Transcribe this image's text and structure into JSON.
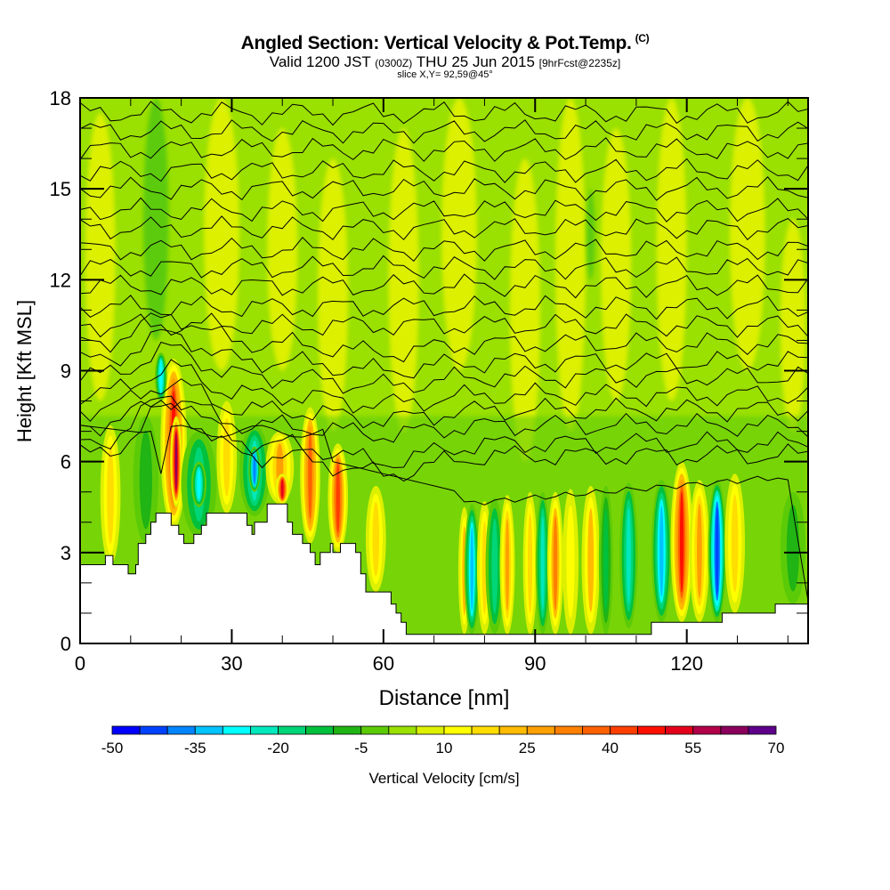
{
  "title": {
    "main": "Angled Section: Vertical Velocity & Pot.Temp.",
    "main_suffix": "(C)",
    "valid_prefix": "Valid 1200 JST",
    "valid_utc": "(0300Z)",
    "valid_date": "THU 25 Jun 2015",
    "forecast": "[9hrFcst@2235z]",
    "slice": "slice X,Y= 92,59@45°"
  },
  "chart_data": {
    "type": "heatmap",
    "title": "Angled Section: Vertical Velocity & Pot.Temp.",
    "xlabel": "Distance [nm]",
    "ylabel": "Height [Kft MSL]",
    "xlim": [
      0,
      144
    ],
    "ylim": [
      0,
      18
    ],
    "x_ticks": [
      0,
      30,
      60,
      90,
      120
    ],
    "x_tick_labels": [
      "0",
      "30",
      "60",
      "90",
      "120"
    ],
    "x_minor_step": 10,
    "y_ticks": [
      0,
      3,
      6,
      9,
      12,
      15,
      18
    ],
    "y_tick_labels": [
      "0",
      "3",
      "6",
      "9",
      "12",
      "15",
      "18"
    ],
    "y_minor_step": 1,
    "background_velocity": 2,
    "terrain_kft": [
      [
        0,
        2.6
      ],
      [
        5,
        2.6
      ],
      [
        5,
        2.9
      ],
      [
        6.5,
        2.9
      ],
      [
        6.5,
        2.6
      ],
      [
        9.5,
        2.6
      ],
      [
        9.5,
        2.3
      ],
      [
        11,
        2.3
      ],
      [
        11,
        2.6
      ],
      [
        11.5,
        2.6
      ],
      [
        11.5,
        3.3
      ],
      [
        13,
        3.3
      ],
      [
        13,
        3.6
      ],
      [
        14,
        3.6
      ],
      [
        14,
        4.0
      ],
      [
        15,
        4.0
      ],
      [
        15,
        4.3
      ],
      [
        18,
        4.3
      ],
      [
        18,
        3.9
      ],
      [
        19.5,
        3.9
      ],
      [
        19.5,
        3.6
      ],
      [
        20.5,
        3.6
      ],
      [
        20.5,
        3.3
      ],
      [
        22.5,
        3.3
      ],
      [
        22.5,
        3.6
      ],
      [
        24,
        3.6
      ],
      [
        24,
        3.9
      ],
      [
        25,
        3.9
      ],
      [
        25,
        4.3
      ],
      [
        33,
        4.3
      ],
      [
        33,
        3.9
      ],
      [
        34,
        3.9
      ],
      [
        34,
        3.6
      ],
      [
        34.5,
        3.6
      ],
      [
        34.5,
        4.0
      ],
      [
        37,
        4.0
      ],
      [
        37,
        4.6
      ],
      [
        41,
        4.6
      ],
      [
        41,
        4.0
      ],
      [
        42,
        4.0
      ],
      [
        42,
        3.6
      ],
      [
        44,
        3.6
      ],
      [
        44,
        3.3
      ],
      [
        45.5,
        3.3
      ],
      [
        45.5,
        3.0
      ],
      [
        46.5,
        3.0
      ],
      [
        46.5,
        2.6
      ],
      [
        47.5,
        2.6
      ],
      [
        47.5,
        3.0
      ],
      [
        49.5,
        3.0
      ],
      [
        49.5,
        3.3
      ],
      [
        50,
        3.3
      ],
      [
        50,
        3.0
      ],
      [
        51.5,
        3.0
      ],
      [
        51.5,
        3.3
      ],
      [
        54.5,
        3.3
      ],
      [
        54.5,
        3.0
      ],
      [
        55.5,
        3.0
      ],
      [
        55.5,
        2.3
      ],
      [
        56.5,
        2.3
      ],
      [
        56.5,
        1.7
      ],
      [
        61.5,
        1.7
      ],
      [
        61.5,
        1.3
      ],
      [
        62.5,
        1.3
      ],
      [
        62.5,
        1.0
      ],
      [
        63.5,
        1.0
      ],
      [
        63.5,
        0.7
      ],
      [
        64.5,
        0.7
      ],
      [
        64.5,
        0.3
      ],
      [
        75,
        0.3
      ],
      [
        113,
        0.3
      ],
      [
        113,
        0.7
      ],
      [
        127,
        0.7
      ],
      [
        127,
        1.0
      ],
      [
        137.5,
        1.0
      ],
      [
        137.5,
        1.3
      ],
      [
        144,
        1.3
      ]
    ],
    "velocity_cells": [
      {
        "x": 6,
        "zmin": 2.6,
        "zmax": 7.2,
        "w": 2.0,
        "v": 15
      },
      {
        "x": 13,
        "zmin": 3.3,
        "zmax": 7.5,
        "w": 2.5,
        "v": -10
      },
      {
        "x": 18.5,
        "zmin": 3.8,
        "zmax": 9.4,
        "w": 2.6,
        "v": 45
      },
      {
        "x": 19,
        "zmin": 4.5,
        "zmax": 7.5,
        "w": 1.2,
        "v": 60
      },
      {
        "x": 16,
        "zmin": 8.0,
        "zmax": 9.6,
        "w": 1.2,
        "v": -30
      },
      {
        "x": 23.5,
        "zmin": 3.5,
        "zmax": 7.0,
        "w": 3.5,
        "v": -20
      },
      {
        "x": 23.5,
        "zmin": 4.5,
        "zmax": 6.0,
        "w": 1.5,
        "v": -30
      },
      {
        "x": 29,
        "zmin": 4.3,
        "zmax": 8.0,
        "w": 2.0,
        "v": 15
      },
      {
        "x": 34.5,
        "zmin": 4.2,
        "zmax": 7.2,
        "w": 3.0,
        "v": -25
      },
      {
        "x": 34.5,
        "zmin": 5.0,
        "zmax": 6.5,
        "w": 1.2,
        "v": -40
      },
      {
        "x": 39.5,
        "zmin": 4.6,
        "zmax": 7.0,
        "w": 2.8,
        "v": 25
      },
      {
        "x": 40,
        "zmin": 4.6,
        "zmax": 5.6,
        "w": 1.4,
        "v": 50
      },
      {
        "x": 45.5,
        "zmin": 3.3,
        "zmax": 7.8,
        "w": 2.0,
        "v": 35
      },
      {
        "x": 51,
        "zmin": 3.0,
        "zmax": 6.6,
        "w": 2.0,
        "v": 40
      },
      {
        "x": 58.5,
        "zmin": 1.7,
        "zmax": 5.2,
        "w": 2.0,
        "v": 15
      },
      {
        "x": 76,
        "zmin": 0.3,
        "zmax": 4.5,
        "w": 1.2,
        "v": 20
      },
      {
        "x": 77.5,
        "zmin": 0.3,
        "zmax": 4.6,
        "w": 1.5,
        "v": -35
      },
      {
        "x": 80,
        "zmin": 0.3,
        "zmax": 4.7,
        "w": 1.5,
        "v": 15
      },
      {
        "x": 82,
        "zmin": 0.3,
        "zmax": 4.8,
        "w": 1.8,
        "v": -20
      },
      {
        "x": 84.5,
        "zmin": 0.3,
        "zmax": 4.9,
        "w": 1.5,
        "v": 25
      },
      {
        "x": 89,
        "zmin": 0.3,
        "zmax": 5.0,
        "w": 1.4,
        "v": 15
      },
      {
        "x": 91.5,
        "zmin": 0.3,
        "zmax": 5.0,
        "w": 1.4,
        "v": -25
      },
      {
        "x": 94,
        "zmin": 0.3,
        "zmax": 5.0,
        "w": 1.6,
        "v": 30
      },
      {
        "x": 97,
        "zmin": 0.3,
        "zmax": 5.1,
        "w": 1.6,
        "v": 10
      },
      {
        "x": 101,
        "zmin": 0.3,
        "zmax": 5.2,
        "w": 1.8,
        "v": 20
      },
      {
        "x": 104,
        "zmin": 0.3,
        "zmax": 5.2,
        "w": 1.4,
        "v": -15
      },
      {
        "x": 108.5,
        "zmin": 0.5,
        "zmax": 5.3,
        "w": 1.8,
        "v": -25
      },
      {
        "x": 115,
        "zmin": 0.7,
        "zmax": 5.4,
        "w": 2.0,
        "v": -35
      },
      {
        "x": 119,
        "zmin": 0.7,
        "zmax": 6.0,
        "w": 2.2,
        "v": 45
      },
      {
        "x": 122.5,
        "zmin": 0.7,
        "zmax": 5.4,
        "w": 2.0,
        "v": 25
      },
      {
        "x": 126,
        "zmin": 0.7,
        "zmax": 5.4,
        "w": 1.8,
        "v": -45
      },
      {
        "x": 129.5,
        "zmin": 1.0,
        "zmax": 5.6,
        "w": 2.0,
        "v": 15
      },
      {
        "x": 141,
        "zmin": 1.3,
        "zmax": 5.0,
        "w": 2.5,
        "v": -10
      }
    ],
    "upper_streaks": [
      {
        "x": 4,
        "zmin": 8,
        "zmax": 17.5,
        "w": 3,
        "v": 5
      },
      {
        "x": 15,
        "zmin": 10,
        "zmax": 18,
        "w": 2.5,
        "v": -5
      },
      {
        "x": 28,
        "zmin": 9,
        "zmax": 18,
        "w": 3.5,
        "v": 5
      },
      {
        "x": 40,
        "zmin": 9,
        "zmax": 17,
        "w": 3,
        "v": 5
      },
      {
        "x": 50,
        "zmin": 7,
        "zmax": 16,
        "w": 3,
        "v": 5
      },
      {
        "x": 64,
        "zmin": 7,
        "zmax": 17,
        "w": 3,
        "v": 5
      },
      {
        "x": 75,
        "zmin": 9,
        "zmax": 18,
        "w": 3.5,
        "v": 5
      },
      {
        "x": 88,
        "zmin": 6,
        "zmax": 16,
        "w": 3,
        "v": 5
      },
      {
        "x": 97,
        "zmin": 7,
        "zmax": 18,
        "w": 3,
        "v": 5
      },
      {
        "x": 106,
        "zmin": 8,
        "zmax": 17,
        "w": 3,
        "v": 5
      },
      {
        "x": 117,
        "zmin": 8,
        "zmax": 18,
        "w": 3,
        "v": 5
      },
      {
        "x": 132,
        "zmin": 9,
        "zmax": 18,
        "w": 3.5,
        "v": 5
      },
      {
        "x": 141,
        "zmin": 7,
        "zmax": 14,
        "w": 2.5,
        "v": 5
      },
      {
        "x": 101,
        "zmin": 12,
        "zmax": 15,
        "w": 0.8,
        "v": -5
      }
    ],
    "isentrope_heights_kft": [
      5.2,
      6.2,
      6.6,
      7.2,
      7.7,
      8.2,
      8.8,
      9.3,
      9.9,
      10.5,
      11.1,
      11.8,
      12.4,
      13.0,
      13.7,
      14.3,
      15.0,
      15.6,
      16.3,
      16.9,
      17.5
    ],
    "colorbar": {
      "label": "Vertical Velocity [cm/s]",
      "min": -50,
      "max": 70,
      "step": 5,
      "tick_labels": [
        "-50",
        "-35",
        "-20",
        "-5",
        "10",
        "25",
        "40",
        "55",
        "70"
      ],
      "colors": [
        "#0000ff",
        "#0042ff",
        "#0085ff",
        "#00c3ff",
        "#00ffff",
        "#00e9bd",
        "#00d577",
        "#00c03c",
        "#20b414",
        "#5ccb07",
        "#9ae000",
        "#dcf000",
        "#ffff00",
        "#ffdd00",
        "#ffbb00",
        "#ffa000",
        "#ff8000",
        "#ff6000",
        "#ff3e00",
        "#ff0f00",
        "#e4001c",
        "#b20049",
        "#8a005c",
        "#5f008a"
      ]
    }
  }
}
